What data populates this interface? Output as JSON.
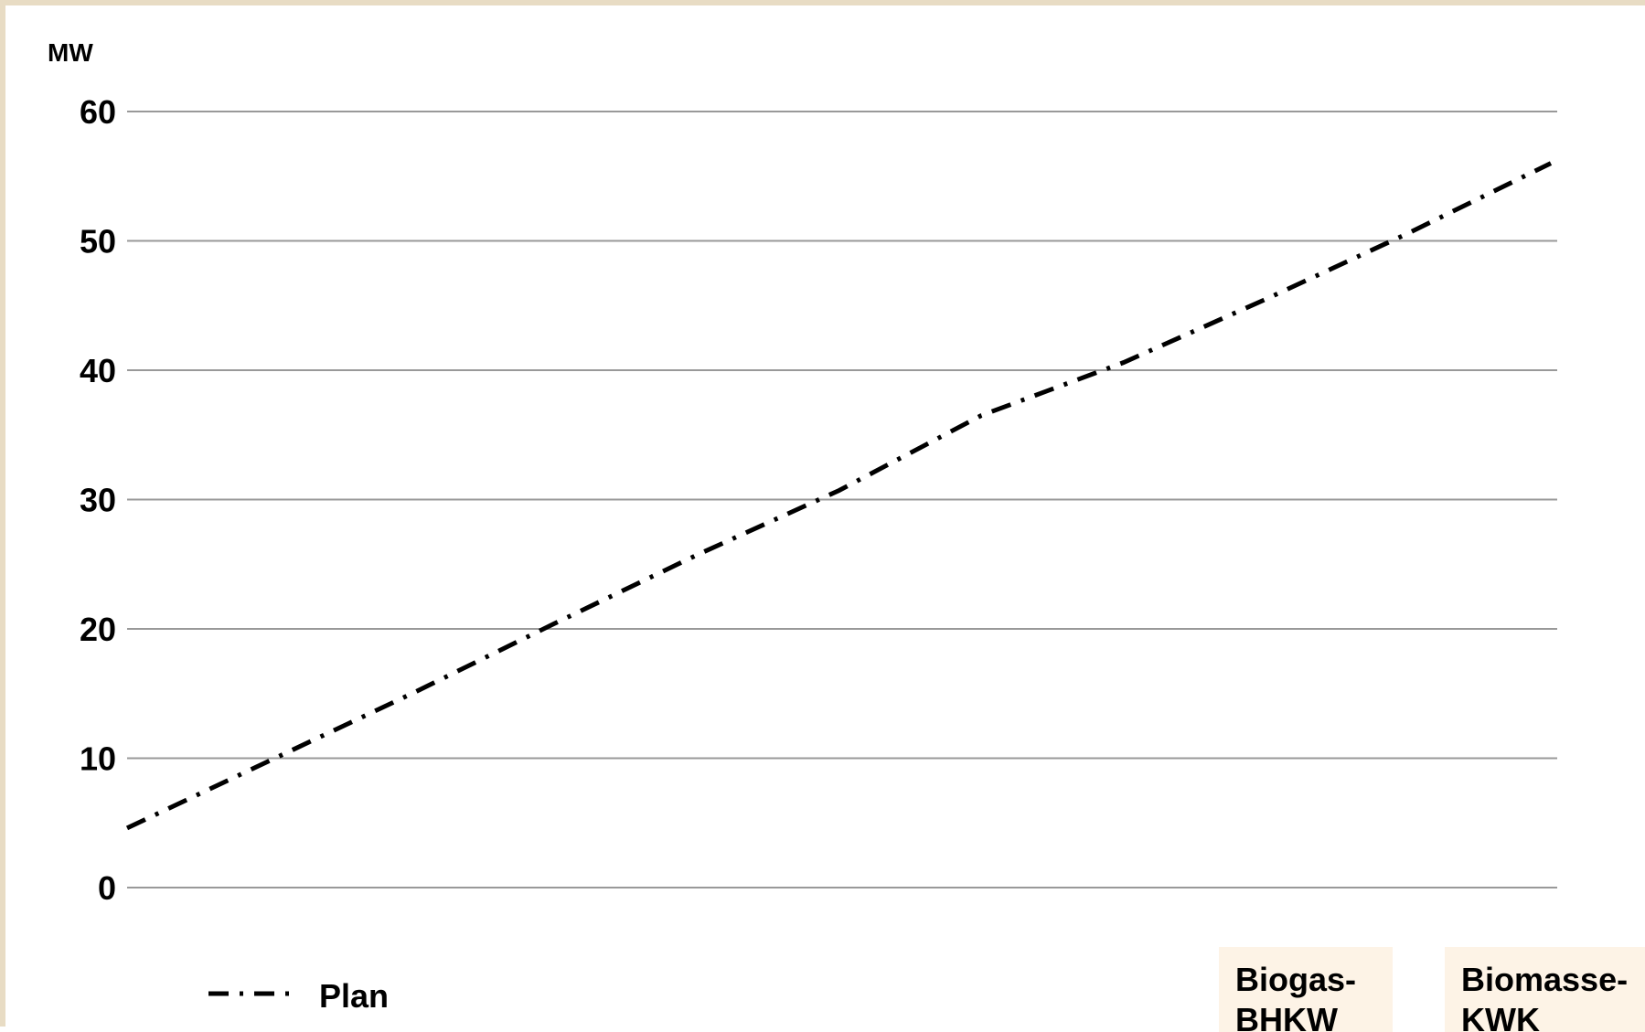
{
  "colors": {
    "background": "#ffffff",
    "frame": "#e8dcc4",
    "gridline": "#999999",
    "line": "#000000",
    "panel_background": "#fdf3e6"
  },
  "chart_data": {
    "type": "line",
    "ylabel": "MW",
    "ylim": [
      0,
      60
    ],
    "yticks": [
      0,
      10,
      20,
      30,
      40,
      50,
      60
    ],
    "grid": true,
    "legend_position": "bottom-left",
    "series": [
      {
        "name": "Plan",
        "line_style": "dash-dot",
        "values": [
          4.6,
          9.8,
          15.0,
          20.4,
          25.7,
          30.7,
          36.5,
          40.6,
          45.5,
          50.6,
          56.0
        ]
      }
    ]
  },
  "panels": [
    {
      "lines": [
        "Biogas-",
        "BHKW"
      ]
    },
    {
      "lines": [
        "Biomasse-",
        "KWK"
      ]
    }
  ]
}
